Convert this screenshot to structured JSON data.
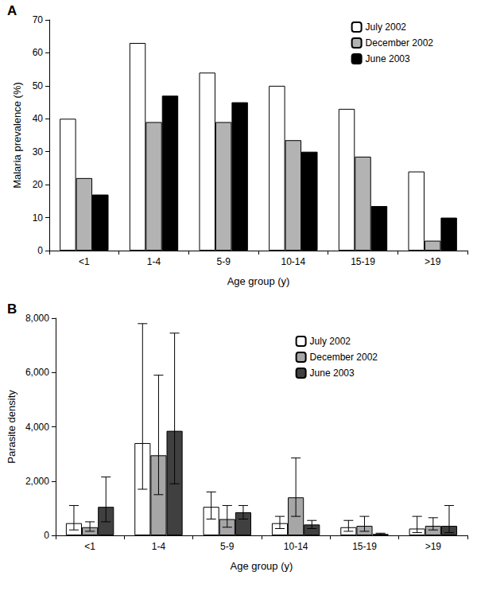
{
  "chart_data": [
    {
      "type": "bar",
      "title": "A",
      "x_label": "Age group (y)",
      "y_label": "Malaria prevalence (%)",
      "categories": [
        "<1",
        "1-4",
        "5-9",
        "10-14",
        "15-19",
        ">19"
      ],
      "series": [
        {
          "name": "July 2002",
          "color": "#ffffff",
          "values": [
            40,
            63,
            54,
            50,
            43,
            24
          ]
        },
        {
          "name": "December 2002",
          "color": "#b3b3b3",
          "values": [
            22,
            39,
            39,
            33.5,
            28.5,
            3
          ]
        },
        {
          "name": "June 2003",
          "color": "#000000",
          "values": [
            17,
            47,
            45,
            30,
            13.5,
            10
          ]
        }
      ],
      "ylim": [
        0,
        70
      ],
      "yticks": [
        0,
        10,
        20,
        30,
        40,
        50,
        60,
        70
      ],
      "grid": false,
      "legend": "upper right"
    },
    {
      "type": "bar",
      "title": "B",
      "x_label": "Age group (y)",
      "y_label": "Parasite density",
      "categories": [
        "<1",
        "1-4",
        "5-9",
        "10-14",
        "15-19",
        ">19"
      ],
      "series": [
        {
          "name": "July 2002",
          "color": "#ffffff",
          "values": [
            450,
            3400,
            1050,
            450,
            300,
            250
          ],
          "error_low": [
            200,
            1700,
            600,
            250,
            150,
            100
          ],
          "error_high": [
            1100,
            7800,
            1600,
            700,
            550,
            700
          ]
        },
        {
          "name": "December 2002",
          "color": "#a6a6a6",
          "values": [
            300,
            2950,
            600,
            1400,
            350,
            350
          ],
          "error_low": [
            150,
            1500,
            300,
            700,
            150,
            200
          ],
          "error_high": [
            500,
            5900,
            1100,
            2850,
            700,
            650
          ]
        },
        {
          "name": "June 2003",
          "color": "#404040",
          "values": [
            1050,
            3850,
            850,
            400,
            50,
            350
          ],
          "error_low": [
            500,
            1900,
            600,
            250,
            30,
            100
          ],
          "error_high": [
            2150,
            7450,
            1100,
            550,
            80,
            1100
          ]
        }
      ],
      "ylim": [
        0,
        8000
      ],
      "yticks": [
        0,
        {
          "value": 2000,
          "label": "2,000"
        },
        {
          "value": 4000,
          "label": "4,000"
        },
        {
          "value": 6000,
          "label": "6,000"
        },
        {
          "value": 8000,
          "label": "8,000"
        }
      ],
      "grid": false,
      "legend": "upper right"
    }
  ]
}
